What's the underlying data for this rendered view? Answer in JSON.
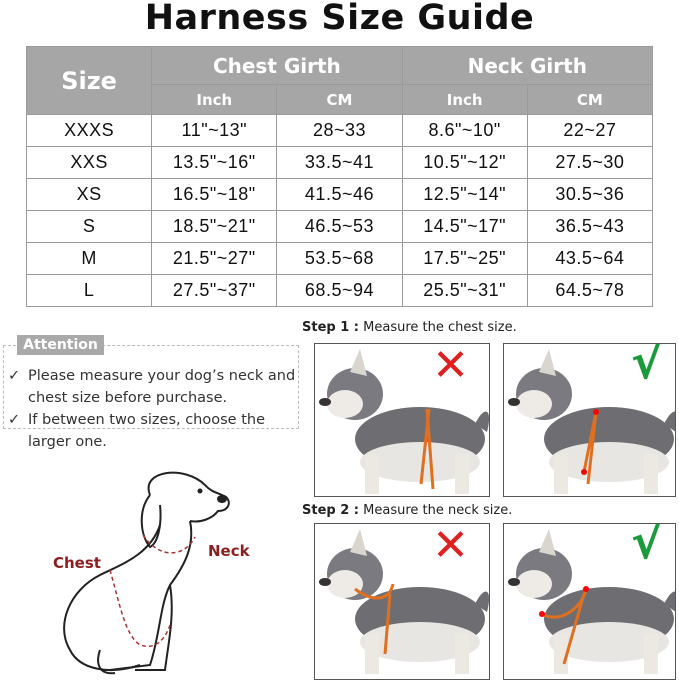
{
  "title": "Harness Size Guide",
  "table": {
    "size_header": "Size",
    "groups": [
      "Chest Girth",
      "Neck Girth"
    ],
    "sub_headers": [
      "Inch",
      "CM",
      "Inch",
      "CM"
    ],
    "rows": [
      [
        "XXXS",
        "11\"~13\"",
        "28~33",
        "8.6\"~10\"",
        "22~27"
      ],
      [
        "XXS",
        "13.5\"~16\"",
        "33.5~41",
        "10.5\"~12\"",
        "27.5~30"
      ],
      [
        "XS",
        "16.5\"~18\"",
        "41.5~46",
        "12.5\"~14\"",
        "30.5~36"
      ],
      [
        "S",
        "18.5\"~21\"",
        "46.5~53",
        "14.5\"~17\"",
        "36.5~43"
      ],
      [
        "M",
        "21.5\"~27\"",
        "53.5~68",
        "17.5\"~25\"",
        "43.5~64"
      ],
      [
        "L",
        "27.5\"~37\"",
        "68.5~94",
        "25.5\"~31\"",
        "64.5~78"
      ]
    ]
  },
  "attention": {
    "label": "Attention",
    "check": "✓",
    "items": [
      "Please measure your dog’s neck and chest size before purchase.",
      "If between two sizes, choose the larger one."
    ]
  },
  "diagram": {
    "chest_label": "Chest",
    "neck_label": "Neck"
  },
  "steps": [
    {
      "prefix": "Step 1 :",
      "text": " Measure the chest size."
    },
    {
      "prefix": "Step 2 :",
      "text": " Measure the neck size."
    }
  ],
  "marks": {
    "wrong": "✕",
    "right": "√"
  },
  "colors": {
    "header": "#a6a6a6",
    "wrong": "#e02020",
    "right": "#1a9a3a",
    "strap": "#e07020",
    "label": "#8b1f1f"
  }
}
